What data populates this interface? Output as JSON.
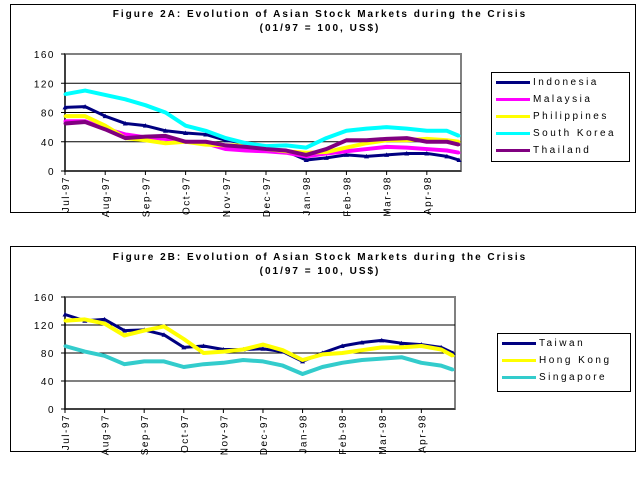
{
  "chart_data": [
    {
      "type": "line",
      "title": "Figure 2A: Evolution of Asian Stock Markets during the Crisis",
      "subtitle": "(01/97 = 100, US$)",
      "xlabel": "",
      "ylabel": "",
      "ylim": [
        0,
        160
      ],
      "yticks": [
        "0",
        "40",
        "80",
        "120",
        "160"
      ],
      "xtick_labels": [
        "Jul-97",
        "Aug-97",
        "Sep-97",
        "Oct-97",
        "Nov-97",
        "Dec-97",
        "Jan-98",
        "Feb-98",
        "Mar-98",
        "Apr-98"
      ],
      "x_month_index": [
        0,
        0.5,
        1,
        1.5,
        2,
        2.5,
        3,
        3.5,
        4,
        4.5,
        5,
        5.5,
        6,
        6.5,
        7,
        7.5,
        8,
        8.5,
        9,
        9.5,
        9.8
      ],
      "xlim": [
        0,
        9.85
      ],
      "grid": true,
      "legend_position": "right",
      "series": [
        {
          "name": "Indonesia",
          "color": "#000080",
          "marker": "triangle",
          "values": [
            87,
            88,
            75,
            65,
            62,
            55,
            52,
            50,
            42,
            38,
            28,
            27,
            15,
            18,
            22,
            20,
            22,
            24,
            24,
            20,
            15
          ]
        },
        {
          "name": "Malaysia",
          "color": "#ff00ff",
          "marker": "none",
          "values": [
            68,
            68,
            58,
            50,
            46,
            44,
            40,
            38,
            30,
            28,
            27,
            25,
            20,
            24,
            27,
            30,
            33,
            32,
            30,
            28,
            25
          ]
        },
        {
          "name": "Philippines",
          "color": "#ffff00",
          "marker": "none",
          "values": [
            75,
            75,
            62,
            45,
            42,
            38,
            40,
            36,
            35,
            35,
            30,
            27,
            25,
            26,
            32,
            38,
            42,
            42,
            44,
            42,
            40
          ]
        },
        {
          "name": "South Korea",
          "color": "#00ffff",
          "marker": "none",
          "values": [
            105,
            110,
            104,
            98,
            90,
            80,
            62,
            55,
            45,
            38,
            34,
            35,
            32,
            45,
            55,
            58,
            60,
            58,
            55,
            55,
            48
          ]
        },
        {
          "name": "Thailand",
          "color": "#800080",
          "marker": "none",
          "values": [
            65,
            67,
            57,
            45,
            47,
            48,
            40,
            40,
            35,
            33,
            30,
            28,
            22,
            30,
            42,
            42,
            44,
            45,
            40,
            40,
            36
          ]
        }
      ]
    },
    {
      "type": "line",
      "title": "Figure 2B: Evolution of Asian Stock Markets during the Crisis",
      "subtitle": "(01/97 = 100, US$)",
      "xlabel": "",
      "ylabel": "",
      "ylim": [
        0,
        160
      ],
      "yticks": [
        "0",
        "40",
        "80",
        "120",
        "160"
      ],
      "xtick_labels": [
        "Jul-97",
        "Aug-97",
        "Sep-97",
        "Oct-97",
        "Nov-97",
        "Dec-97",
        "Jan-98",
        "Feb-98",
        "Mar-98",
        "Apr-98"
      ],
      "x_month_index": [
        0,
        0.5,
        1,
        1.5,
        2,
        2.5,
        3,
        3.5,
        4,
        4.5,
        5,
        5.5,
        6,
        6.5,
        7,
        7.5,
        8,
        8.5,
        9,
        9.5,
        9.8
      ],
      "xlim": [
        0,
        9.85
      ],
      "grid": true,
      "legend_position": "right",
      "series": [
        {
          "name": "Taiwan",
          "color": "#000080",
          "marker": "triangle",
          "values": [
            135,
            126,
            128,
            112,
            113,
            106,
            88,
            90,
            85,
            85,
            86,
            82,
            68,
            80,
            90,
            95,
            98,
            94,
            92,
            88,
            80
          ]
        },
        {
          "name": "Hong Kong",
          "color": "#ffff00",
          "marker": "none",
          "values": [
            126,
            128,
            122,
            105,
            112,
            118,
            100,
            80,
            82,
            85,
            92,
            84,
            70,
            78,
            80,
            84,
            88,
            88,
            90,
            85,
            76
          ]
        },
        {
          "name": "Singapore",
          "color": "#33cccc",
          "marker": "none",
          "values": [
            90,
            82,
            76,
            64,
            68,
            68,
            60,
            64,
            66,
            70,
            68,
            62,
            50,
            60,
            66,
            70,
            72,
            74,
            66,
            62,
            56
          ]
        }
      ]
    }
  ]
}
